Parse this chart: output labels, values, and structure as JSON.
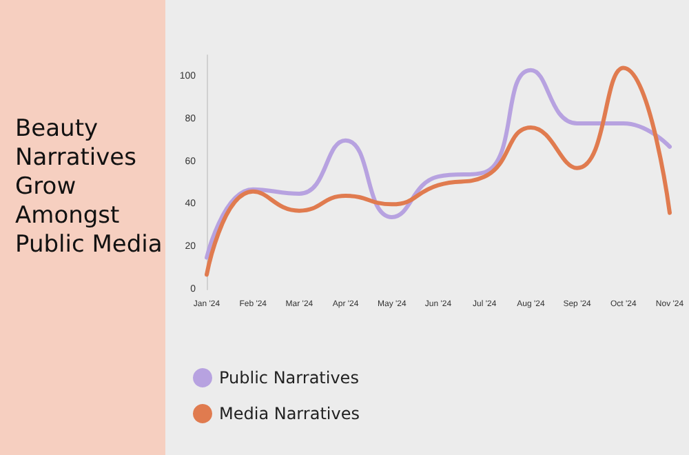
{
  "chart_data": {
    "type": "line",
    "title": "Beauty Narratives Grow Amongst Public Media",
    "categories": [
      "Jan '24",
      "Feb '24",
      "Mar '24",
      "Apr '24",
      "May '24",
      "Jun '24",
      "Jul '24",
      "Aug '24",
      "Sep '24",
      "Oct '24",
      "Nov '24"
    ],
    "series": [
      {
        "name": "Public Narratives",
        "color": "#b7a2e0",
        "values": [
          15,
          47,
          45,
          70,
          34,
          53,
          55,
          103,
          78,
          78,
          67
        ]
      },
      {
        "name": "Media Narratives",
        "color": "#e07b4f",
        "values": [
          7,
          46,
          37,
          44,
          40,
          49,
          53,
          76,
          57,
          104,
          36
        ]
      }
    ],
    "ylim": [
      0,
      110
    ],
    "yticks": [
      0,
      20,
      40,
      60,
      80,
      100
    ],
    "grid": false,
    "legend": "bottom left",
    "marker": "none",
    "line_style": "solid"
  }
}
